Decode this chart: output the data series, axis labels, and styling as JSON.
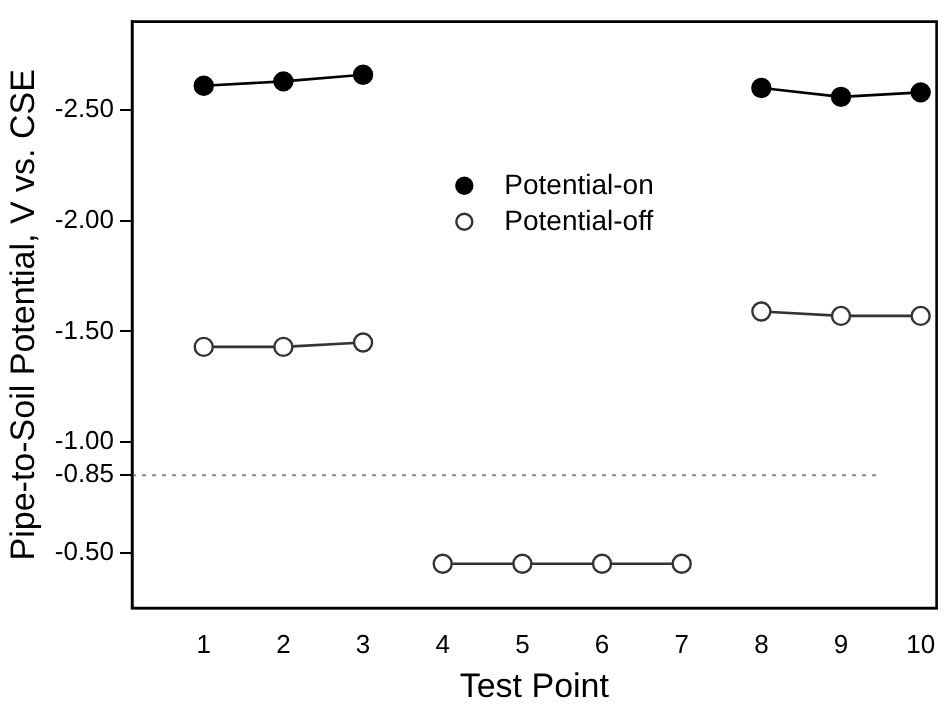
{
  "chart_data": {
    "type": "line",
    "xlabel": "Test Point",
    "ylabel": "Pipe-to-Soil Potential, V vs. CSE",
    "x": [
      1,
      2,
      3,
      4,
      5,
      6,
      7,
      8,
      9,
      10
    ],
    "series": [
      {
        "name": "Potential-on",
        "color": "#000000",
        "values": [
          -2.61,
          -2.63,
          -2.66,
          null,
          null,
          null,
          null,
          -2.6,
          -2.56,
          -2.58
        ]
      },
      {
        "name": "Potential-off",
        "color": "#333333",
        "values": [
          -1.43,
          -1.43,
          -1.45,
          null,
          null,
          null,
          null,
          null,
          null,
          null
        ]
      },
      {
        "color": "#333333",
        "values": [
          null,
          null,
          null,
          -0.45,
          -0.45,
          -0.45,
          -0.45,
          null,
          null,
          null
        ]
      },
      {
        "color": "#333333",
        "values": [
          null,
          null,
          null,
          null,
          null,
          null,
          null,
          -1.59,
          -1.57,
          -1.57
        ]
      }
    ],
    "xlim": [
      0.1,
      10.2
    ],
    "xticks": [
      1,
      2,
      3,
      4,
      5,
      6,
      7,
      8,
      9,
      10
    ],
    "ylim": [
      -0.25,
      -2.9
    ],
    "yticks": [
      {
        "value": -0.5,
        "label": "-0.50"
      },
      {
        "value": -0.85,
        "label": "-0.85"
      },
      {
        "value": -1,
        "label": "-1.00"
      },
      {
        "value": -1.5,
        "label": "-1.50"
      },
      {
        "value": -2,
        "label": "-2.00"
      },
      {
        "value": -2.5,
        "label": "-2.50"
      }
    ],
    "ref_lines": [
      {
        "axis": "y",
        "value": -0.85,
        "color": "#888888",
        "line_style": "dotted"
      }
    ],
    "grid": false,
    "legend": "center",
    "marker": "circle",
    "line_style": "solid"
  }
}
